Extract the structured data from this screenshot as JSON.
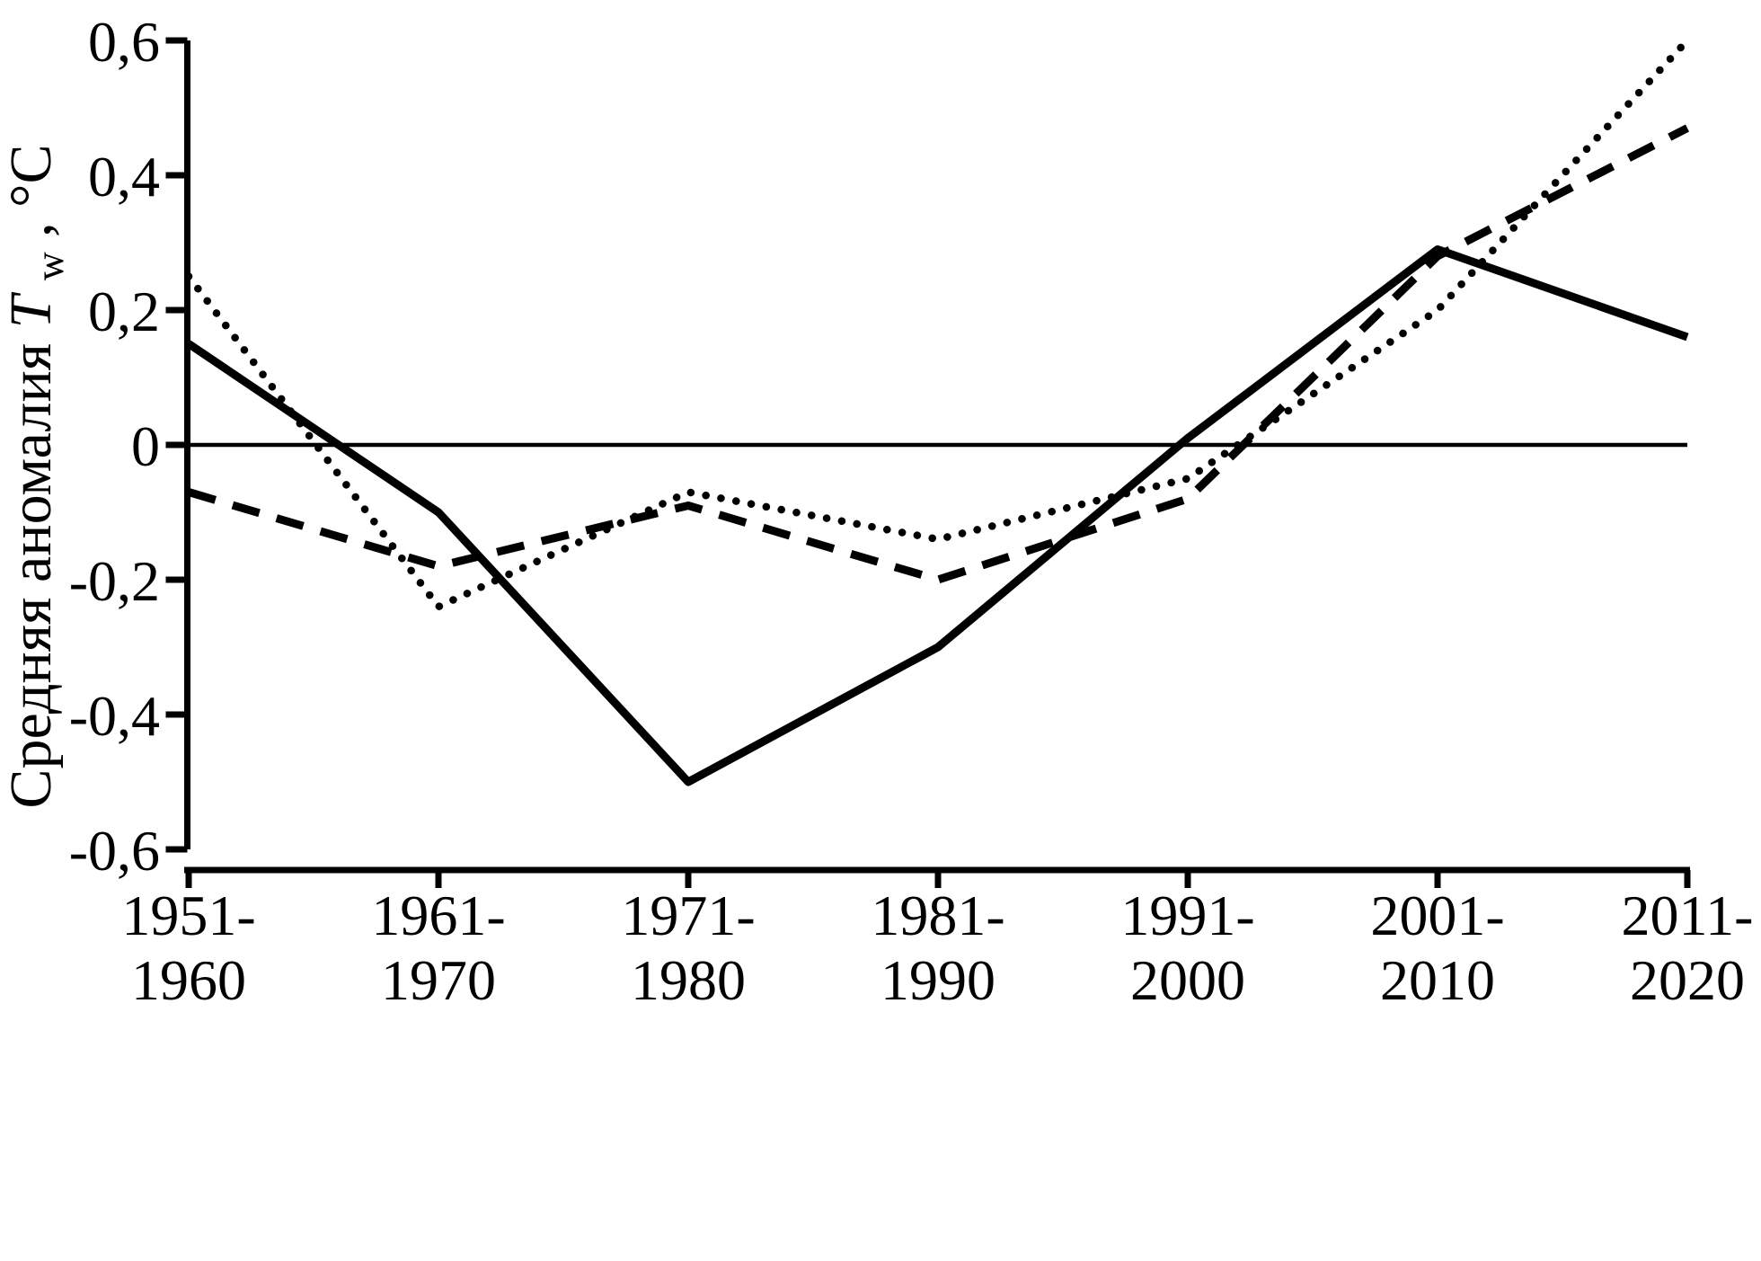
{
  "figure": {
    "background": "#ffffff",
    "ink_color": "#000000",
    "y_axis_title": {
      "prefix": "Средняя аномалия ",
      "symbol": "T",
      "subscript": "w",
      "suffix": ", °C"
    }
  },
  "chart_data": {
    "type": "line",
    "title": "",
    "xlabel": "",
    "ylabel": "Средняя аномалия Tw, °C",
    "ylim": [
      -0.6,
      0.6
    ],
    "grid": false,
    "legend": "none",
    "zero_line": true,
    "decimal_separator": ",",
    "categories": [
      "1951-1960",
      "1961-1970",
      "1971-1980",
      "1981-1990",
      "1991-2000",
      "2001-2010",
      "2011-2020"
    ],
    "category_labels": [
      [
        "1951-",
        "1960"
      ],
      [
        "1961-",
        "1970"
      ],
      [
        "1971-",
        "1980"
      ],
      [
        "1981-",
        "1990"
      ],
      [
        "1991-",
        "2000"
      ],
      [
        "2001-",
        "2010"
      ],
      [
        "2011-",
        "2020"
      ]
    ],
    "yticks": [
      {
        "value": 0.6,
        "label": "0,6"
      },
      {
        "value": 0.4,
        "label": "0,4"
      },
      {
        "value": 0.2,
        "label": "0,2"
      },
      {
        "value": 0.0,
        "label": "0"
      },
      {
        "value": -0.2,
        "label": "-0,2"
      },
      {
        "value": -0.4,
        "label": "-0,4"
      },
      {
        "value": -0.6,
        "label": "-0,6"
      }
    ],
    "series": [
      {
        "name": "solid bold line",
        "style": "solid",
        "color": "#000000",
        "values": [
          0.15,
          -0.1,
          -0.5,
          -0.3,
          0.01,
          0.29,
          0.16
        ]
      },
      {
        "name": "dashed line",
        "style": "dashed",
        "color": "#000000",
        "values": [
          -0.07,
          -0.18,
          -0.09,
          -0.2,
          -0.08,
          0.28,
          0.47
        ]
      },
      {
        "name": "dotted line",
        "style": "dotted",
        "color": "#000000",
        "values": [
          0.25,
          -0.24,
          -0.07,
          -0.14,
          -0.05,
          0.2,
          0.6
        ]
      }
    ]
  }
}
